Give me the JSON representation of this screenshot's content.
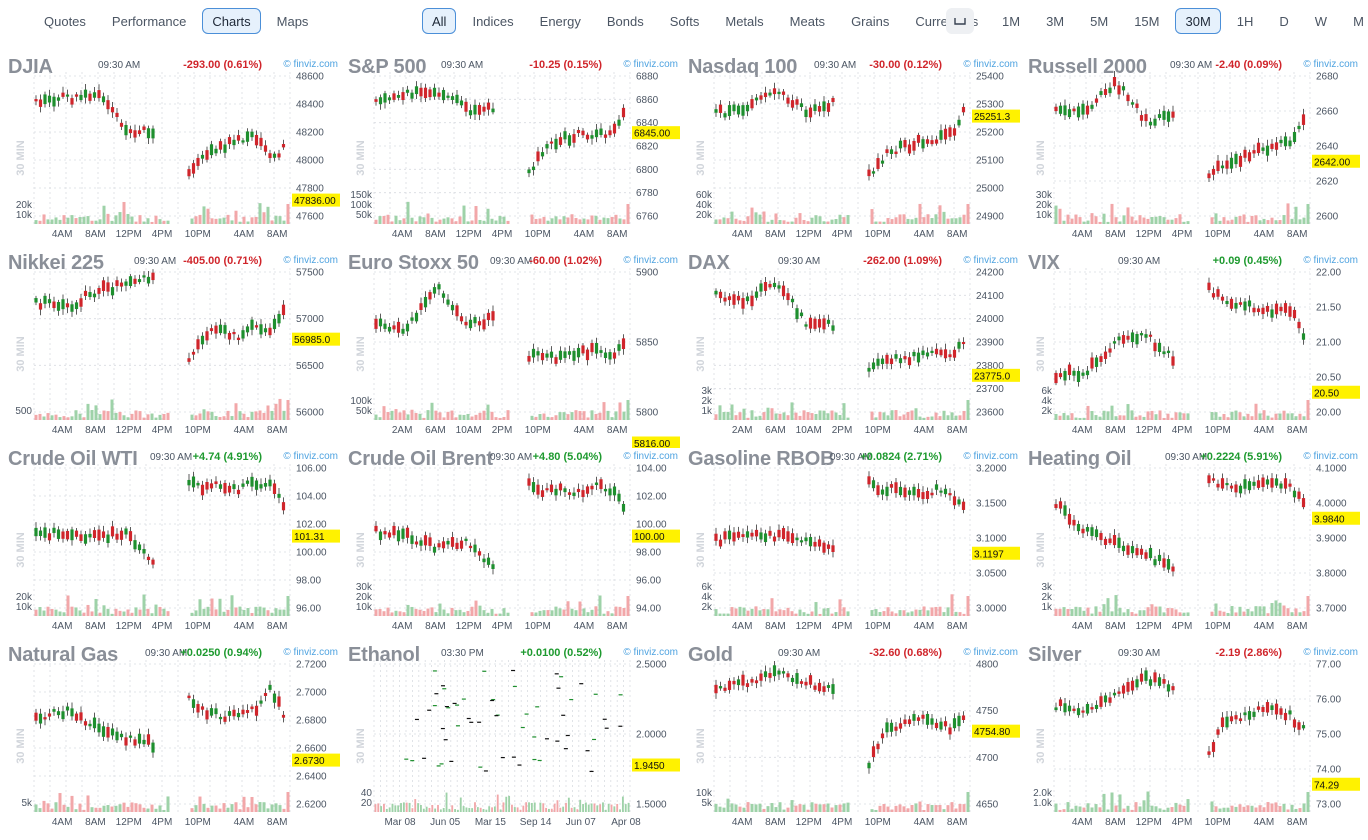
{
  "nav": {
    "views": [
      {
        "label": "Quotes",
        "active": false
      },
      {
        "label": "Performance",
        "active": false
      },
      {
        "label": "Charts",
        "active": true
      },
      {
        "label": "Maps",
        "active": false
      }
    ],
    "categories": [
      {
        "label": "All",
        "active": true
      },
      {
        "label": "Indices",
        "active": false
      },
      {
        "label": "Energy",
        "active": false
      },
      {
        "label": "Bonds",
        "active": false
      },
      {
        "label": "Softs",
        "active": false
      },
      {
        "label": "Metals",
        "active": false
      },
      {
        "label": "Meats",
        "active": false
      },
      {
        "label": "Grains",
        "active": false
      },
      {
        "label": "Currencies",
        "active": false
      }
    ],
    "timeframes": [
      {
        "label": "1M",
        "active": false
      },
      {
        "label": "3M",
        "active": false
      },
      {
        "label": "5M",
        "active": false
      },
      {
        "label": "15M",
        "active": false
      },
      {
        "label": "30M",
        "active": true
      },
      {
        "label": "1H",
        "active": false
      },
      {
        "label": "D",
        "active": false
      },
      {
        "label": "W",
        "active": false
      },
      {
        "label": "M",
        "active": false
      }
    ],
    "icons": {
      "layout": "layout-toggle-icon",
      "calendar": "calendar-icon"
    }
  },
  "colors": {
    "up": "#1e8f2e",
    "down": "#d0252b",
    "vol_up": "#9ed2a8",
    "vol_down": "#f2a7a9",
    "current": "#fff200",
    "title": "#8a8f98"
  },
  "panels": [
    {
      "title": "DJIA",
      "time": "09:30 AM",
      "change": "-293.00 (0.61%)",
      "direction": "down",
      "source": "© finviz.com",
      "timeframe": "30 MIN",
      "y_ticks": [
        "48600",
        "48400",
        "48200",
        "48000",
        "47800",
        "47600"
      ],
      "current": "47836.00",
      "current_tick": 4,
      "vol_ticks": [
        "20k",
        "10k"
      ],
      "x_ticks": [
        "4AM",
        "8AM",
        "12PM",
        "4PM",
        "10PM",
        "4AM",
        "8AM"
      ]
    },
    {
      "title": "S&P 500",
      "time": "09:30 AM",
      "change": "-10.25 (0.15%)",
      "direction": "down",
      "source": "© finviz.com",
      "timeframe": "30 MIN",
      "y_ticks": [
        "6880",
        "6860",
        "6840",
        "6820",
        "6800",
        "6780",
        "6760"
      ],
      "current": "6845.00",
      "current_tick": 2,
      "vol_ticks": [
        "150k",
        "100k",
        "50k"
      ],
      "x_ticks": [
        "4AM",
        "8AM",
        "12PM",
        "4PM",
        "10PM",
        "4AM",
        "8AM"
      ]
    },
    {
      "title": "Nasdaq 100",
      "time": "09:30 AM",
      "change": "-30.00 (0.12%)",
      "direction": "down",
      "source": "© finviz.com",
      "timeframe": "30 MIN",
      "y_ticks": [
        "25400",
        "25300",
        "25200",
        "25100",
        "25000",
        "24900"
      ],
      "current": "25251.3",
      "current_tick": 1,
      "vol_ticks": [
        "60k",
        "40k",
        "20k"
      ],
      "x_ticks": [
        "4AM",
        "8AM",
        "12PM",
        "4PM",
        "10PM",
        "4AM",
        "8AM"
      ]
    },
    {
      "title": "Russell 2000",
      "time": "09:30 AM",
      "change": "-2.40 (0.09%)",
      "direction": "down",
      "source": "© finviz.com",
      "timeframe": "30 MIN",
      "y_ticks": [
        "2680",
        "2660",
        "2640",
        "2620",
        "2600"
      ],
      "current": "2642.00",
      "current_tick": 2,
      "vol_ticks": [
        "30k",
        "20k",
        "10k"
      ],
      "x_ticks": [
        "4AM",
        "8AM",
        "12PM",
        "4PM",
        "10PM",
        "4AM",
        "8AM"
      ]
    },
    {
      "title": "Nikkei 225",
      "time": "09:30 AM",
      "change": "-405.00 (0.71%)",
      "direction": "down",
      "source": "© finviz.com",
      "timeframe": "30 MIN",
      "y_ticks": [
        "57500",
        "57000",
        "56500",
        "56000"
      ],
      "current": "56985.0",
      "current_tick": 1,
      "vol_ticks": [
        "500"
      ],
      "x_ticks": [
        "4AM",
        "8AM",
        "12PM",
        "4PM",
        "10PM",
        "4AM",
        "8AM"
      ]
    },
    {
      "title": "Euro Stoxx 50",
      "time": "09:30 AM",
      "change": "-60.00 (1.02%)",
      "direction": "down",
      "source": "© finviz.com",
      "timeframe": "30 MIN",
      "y_ticks": [
        "5900",
        "5850",
        "5800"
      ],
      "current": "5816.00",
      "current_tick": 2,
      "vol_ticks": [
        "100k",
        "50k"
      ],
      "x_ticks": [
        "2AM",
        "6AM",
        "10AM",
        "2PM",
        "10PM",
        "4AM",
        "8AM"
      ]
    },
    {
      "title": "DAX",
      "time": "09:30 AM",
      "change": "-262.00 (1.09%)",
      "direction": "down",
      "source": "© finviz.com",
      "timeframe": "30 MIN",
      "y_ticks": [
        "24200",
        "24100",
        "24000",
        "23900",
        "23800",
        "23700",
        "23600"
      ],
      "current": "23775.0",
      "current_tick": 4,
      "vol_ticks": [
        "3k",
        "2k",
        "1k"
      ],
      "x_ticks": [
        "2AM",
        "6AM",
        "10AM",
        "2PM",
        "10PM",
        "4AM",
        "8AM"
      ]
    },
    {
      "title": "VIX",
      "time": "09:30 AM",
      "change": "+0.09 (0.45%)",
      "direction": "up",
      "source": "© finviz.com",
      "timeframe": "30 MIN",
      "y_ticks": [
        "22.00",
        "21.50",
        "21.00",
        "20.50",
        "20.00"
      ],
      "current": "20.50",
      "current_tick": 3,
      "vol_ticks": [
        "6k",
        "4k",
        "2k"
      ],
      "x_ticks": [
        "4AM",
        "8AM",
        "12PM",
        "4PM",
        "10PM",
        "4AM",
        "8AM"
      ]
    },
    {
      "title": "Crude Oil WTI",
      "time": "09:30 AM",
      "change": "+4.74 (4.91%)",
      "direction": "up",
      "source": "© finviz.com",
      "timeframe": "30 MIN",
      "y_ticks": [
        "106.00",
        "104.00",
        "102.00",
        "100.00",
        "98.00",
        "96.00"
      ],
      "current": "101.31",
      "current_tick": 2,
      "vol_ticks": [
        "20k",
        "10k"
      ],
      "x_ticks": [
        "4AM",
        "8AM",
        "12PM",
        "4PM",
        "10PM",
        "4AM",
        "8AM"
      ]
    },
    {
      "title": "Crude Oil Brent",
      "time": "09:30 AM",
      "change": "+4.80 (5.04%)",
      "direction": "up",
      "source": "© finviz.com",
      "timeframe": "30 MIN",
      "y_ticks": [
        "104.00",
        "102.00",
        "100.00",
        "98.00",
        "96.00",
        "94.00"
      ],
      "current": "100.00",
      "current_tick": 2,
      "vol_ticks": [
        "30k",
        "20k",
        "10k"
      ],
      "x_ticks": [
        "4AM",
        "8AM",
        "12PM",
        "4PM",
        "10PM",
        "4AM",
        "8AM"
      ]
    },
    {
      "title": "Gasoline RBOB",
      "time": "09:30 AM",
      "change": "+0.0824 (2.71%)",
      "direction": "up",
      "source": "© finviz.com",
      "timeframe": "30 MIN",
      "y_ticks": [
        "3.2000",
        "3.1500",
        "3.1000",
        "3.0500",
        "3.0000"
      ],
      "current": "3.1197",
      "current_tick": 2,
      "vol_ticks": [
        "6k",
        "4k",
        "2k"
      ],
      "x_ticks": [
        "4AM",
        "8AM",
        "12PM",
        "4PM",
        "10PM",
        "4AM",
        "8AM"
      ]
    },
    {
      "title": "Heating Oil",
      "time": "09:30 AM",
      "change": "+0.2224 (5.91%)",
      "direction": "up",
      "source": "© finviz.com",
      "timeframe": "30 MIN",
      "y_ticks": [
        "4.1000",
        "4.0000",
        "3.9000",
        "3.8000",
        "3.7000"
      ],
      "current": "3.9840",
      "current_tick": 1,
      "vol_ticks": [
        "3k",
        "2k",
        "1k"
      ],
      "x_ticks": [
        "4AM",
        "8AM",
        "12PM",
        "4PM",
        "10PM",
        "4AM",
        "8AM"
      ]
    },
    {
      "title": "Natural Gas",
      "time": "09:30 AM",
      "change": "+0.0250 (0.94%)",
      "direction": "up",
      "source": "© finviz.com",
      "timeframe": "30 MIN",
      "y_ticks": [
        "2.7200",
        "2.7000",
        "2.6800",
        "2.6600",
        "2.6400",
        "2.6200"
      ],
      "current": "2.6730",
      "current_tick": 3,
      "vol_ticks": [
        "5k"
      ],
      "x_ticks": [
        "4AM",
        "8AM",
        "12PM",
        "4PM",
        "10PM",
        "4AM",
        "8AM"
      ]
    },
    {
      "title": "Ethanol",
      "time": "03:30 PM",
      "change": "+0.0100 (0.52%)",
      "direction": "up",
      "source": "© finviz.com",
      "timeframe": "30 MIN",
      "y_ticks": [
        "2.5000",
        "2.0000",
        "1.5000"
      ],
      "current": "1.9450",
      "current_tick": 1,
      "vol_ticks": [
        "40",
        "20"
      ],
      "x_ticks": [
        "Mar 08",
        "Jun 05",
        "Mar 15",
        "Sep 14",
        "Jun 07",
        "Apr 08"
      ]
    },
    {
      "title": "Gold",
      "time": "09:30 AM",
      "change": "-32.60 (0.68%)",
      "direction": "down",
      "source": "© finviz.com",
      "timeframe": "30 MIN",
      "y_ticks": [
        "4800",
        "4750",
        "4700",
        "4650"
      ],
      "current": "4754.80",
      "current_tick": 1,
      "vol_ticks": [
        "10k",
        "5k"
      ],
      "x_ticks": [
        "4AM",
        "8AM",
        "12PM",
        "4PM",
        "10PM",
        "4AM",
        "8AM"
      ]
    },
    {
      "title": "Silver",
      "time": "09:30 AM",
      "change": "-2.19 (2.86%)",
      "direction": "down",
      "source": "© finviz.com",
      "timeframe": "30 MIN",
      "y_ticks": [
        "77.00",
        "76.00",
        "75.00",
        "74.00",
        "73.00"
      ],
      "current": "74.29",
      "current_tick": 3,
      "vol_ticks": [
        "2.0k",
        "1.0k"
      ],
      "x_ticks": [
        "4AM",
        "8AM",
        "12PM",
        "4PM",
        "10PM",
        "4AM",
        "8AM"
      ]
    }
  ]
}
